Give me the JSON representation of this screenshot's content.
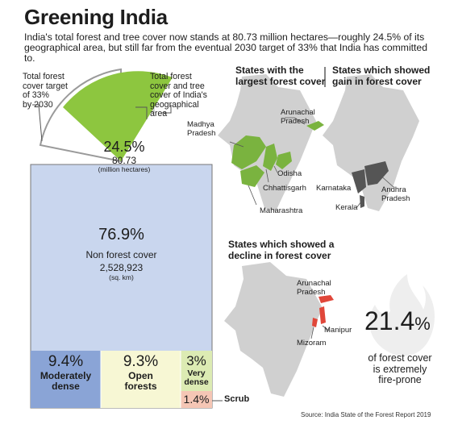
{
  "title": "Greening India",
  "subtitle": "India's total forest and tree cover now stands at 80.73 million hectares—roughly 24.5% of its geographical area, but still far from the eventual 2030 target of 33% that India has committed to.",
  "target_note": [
    "Total forest",
    "cover target",
    "of 33%",
    "by 2030"
  ],
  "current_note": [
    "Total forest",
    "cover and tree",
    "cover of India's",
    "geographical",
    "area"
  ],
  "wedge": {
    "pct": "24.5%",
    "value": "80.73",
    "unit": "(million hectares)"
  },
  "non_forest": {
    "pct": "76.9%",
    "label": "Non forest cover",
    "value": "2,528,923",
    "unit": "(sq. km)"
  },
  "moderately_dense": {
    "pct": "9.4%",
    "label_lines": [
      "Moderately",
      "dense"
    ]
  },
  "open_forests": {
    "pct": "9.3%",
    "label_lines": [
      "Open",
      "forests"
    ]
  },
  "very_dense": {
    "pct": "3%",
    "label_lines": [
      "Very",
      "dense"
    ]
  },
  "scrub": {
    "pct": "1.4%",
    "label": "Scrub"
  },
  "panel_largest": {
    "heading": [
      "States with the",
      "largest forest cover"
    ],
    "states": {
      "arunachal": [
        "Arunachal",
        "Pradesh"
      ],
      "madhya": [
        "Madhya",
        "Pradesh"
      ],
      "odisha": "Odisha",
      "chhattisgarh": "Chhattisgarh",
      "maharashtra": "Maharashtra"
    }
  },
  "panel_gain": {
    "heading": [
      "States which showed",
      "gain in forest cover"
    ],
    "states": {
      "karnataka": "Karnataka",
      "andhra": [
        "Andhra",
        "Pradesh"
      ],
      "kerala": "Kerala"
    }
  },
  "panel_decline": {
    "heading": [
      "States which showed a",
      "decline in forest cover"
    ],
    "states": {
      "arunachal": [
        "Arunachal",
        "Pradesh"
      ],
      "manipur": "Manipur",
      "mizoram": "Mizoram"
    }
  },
  "fire": {
    "pct": "21.4",
    "pct_sign": "%",
    "caption": [
      "of forest cover",
      "is extremely",
      "fire-prone"
    ]
  },
  "source": "Source: India State of the Forest Report 2019",
  "colors": {
    "green": "#8dc63f",
    "blue": "#c9d6ee",
    "dark_blue": "#8aa4d6",
    "cream": "#f7f7d4",
    "light_green": "#dcebb3",
    "pink": "#f5c6b5",
    "gray": "#c8c8c8",
    "dark_gray": "#555555",
    "red": "#e0473a"
  }
}
